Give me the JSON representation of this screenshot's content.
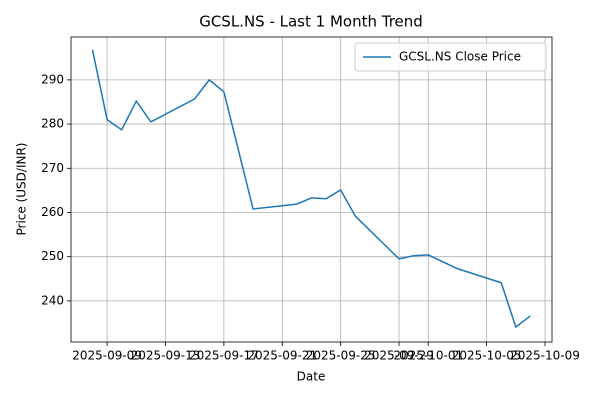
{
  "chart_data": {
    "type": "line",
    "title": "GCSL.NS - Last 1 Month Trend",
    "xlabel": "Date",
    "ylabel": "Price (USD/INR)",
    "x": [
      "2025-09-08",
      "2025-09-09",
      "2025-09-10",
      "2025-09-11",
      "2025-09-12",
      "2025-09-15",
      "2025-09-16",
      "2025-09-17",
      "2025-09-19",
      "2025-09-22",
      "2025-09-23",
      "2025-09-24",
      "2025-09-25",
      "2025-09-26",
      "2025-09-29",
      "2025-09-30",
      "2025-10-01",
      "2025-10-03",
      "2025-10-06",
      "2025-10-07",
      "2025-10-08"
    ],
    "series": [
      {
        "name": "GCSL.NS Close Price",
        "color": "#1f77b4",
        "values": [
          296.8,
          281.0,
          278.7,
          285.2,
          280.5,
          285.7,
          290.0,
          287.3,
          260.8,
          261.9,
          263.3,
          263.1,
          265.1,
          259.2,
          249.5,
          250.2,
          250.4,
          247.3,
          244.1,
          234.1,
          236.6
        ]
      }
    ],
    "xlim": [
      "2025-09-06T12:40",
      "2025-10-09T11:30"
    ],
    "xticks": [
      "2025-09-09",
      "2025-09-13",
      "2025-09-17",
      "2025-09-21",
      "2025-09-25",
      "2025-09-29",
      "2025-10-01",
      "2025-10-05",
      "2025-10-09"
    ],
    "ylim": [
      230.7,
      299.7
    ],
    "yticks": [
      240,
      250,
      260,
      270,
      280,
      290
    ],
    "grid": true,
    "legend": "upper right"
  }
}
